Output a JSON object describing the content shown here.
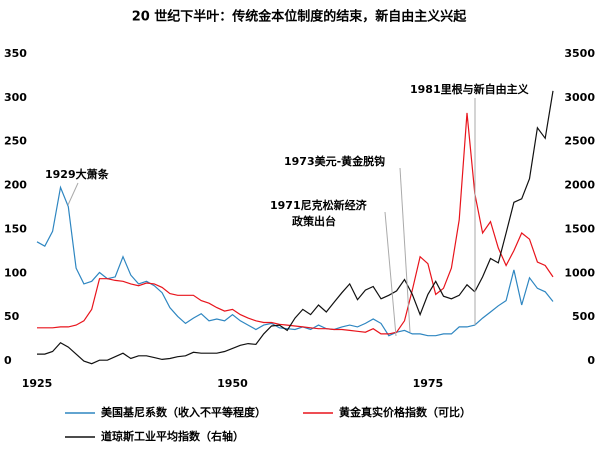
{
  "chart_data": {
    "type": "line",
    "title": "20 世纪下半叶：传统金本位制度的结束，新自由主义兴起",
    "x": [
      1925,
      1926,
      1927,
      1928,
      1929,
      1930,
      1931,
      1932,
      1933,
      1934,
      1935,
      1936,
      1937,
      1938,
      1939,
      1940,
      1941,
      1942,
      1943,
      1944,
      1945,
      1946,
      1947,
      1948,
      1949,
      1950,
      1951,
      1952,
      1953,
      1954,
      1955,
      1956,
      1957,
      1958,
      1959,
      1960,
      1961,
      1962,
      1963,
      1964,
      1965,
      1966,
      1967,
      1968,
      1969,
      1970,
      1971,
      1972,
      1973,
      1974,
      1975,
      1976,
      1977,
      1978,
      1979,
      1980,
      1981,
      1982,
      1983,
      1984,
      1985,
      1986,
      1987,
      1988,
      1989,
      1990,
      1991
    ],
    "xlim": [
      1925,
      1991
    ],
    "xticks": [
      1925,
      1950,
      1975
    ],
    "ylim": [
      0,
      350
    ],
    "yticks": [
      0,
      50,
      100,
      150,
      200,
      250,
      300,
      350
    ],
    "y2lim": [
      0,
      3500
    ],
    "y2ticks": [
      0,
      500,
      1000,
      1500,
      2000,
      2500,
      3000,
      3500
    ],
    "grid": false,
    "legend": "bottom",
    "series": [
      {
        "name": "美国基尼系数（收入不平等程度）",
        "color": "#2e86c1",
        "values": [
          145,
          140,
          157,
          207,
          185,
          115,
          97,
          100,
          110,
          103,
          105,
          128,
          107,
          97,
          100,
          95,
          87,
          70,
          60,
          52,
          58,
          63,
          55,
          57,
          55,
          62,
          55,
          50,
          45,
          50,
          52,
          47,
          46,
          45,
          48,
          45,
          50,
          46,
          45,
          48,
          50,
          48,
          52,
          57,
          52,
          38,
          42,
          44,
          40,
          40,
          38,
          38,
          40,
          40,
          48,
          48,
          50,
          58,
          65,
          72,
          78,
          113,
          73,
          104,
          92,
          88,
          77
        ]
      },
      {
        "name": "黄金真实价格指数（可比）",
        "color": "#e8141c",
        "values": [
          47,
          47,
          47,
          48,
          48,
          50,
          55,
          68,
          103,
          103,
          101,
          100,
          97,
          95,
          98,
          97,
          93,
          86,
          84,
          84,
          84,
          78,
          75,
          70,
          66,
          68,
          62,
          58,
          55,
          53,
          53,
          51,
          50,
          49,
          48,
          47,
          46,
          46,
          45,
          45,
          44,
          43,
          42,
          46,
          40,
          40,
          42,
          55,
          90,
          128,
          120,
          85,
          92,
          115,
          170,
          292,
          200,
          155,
          168,
          138,
          118,
          135,
          155,
          148,
          122,
          118,
          105
        ]
      },
      {
        "name": "道琼斯工业平均指数（右轴）",
        "color": "#111111",
        "axis": "y2",
        "values": [
          170,
          170,
          200,
          300,
          250,
          170,
          90,
          60,
          100,
          100,
          140,
          180,
          120,
          150,
          150,
          130,
          110,
          120,
          140,
          150,
          190,
          180,
          180,
          180,
          200,
          235,
          270,
          290,
          280,
          400,
          490,
          500,
          440,
          580,
          680,
          620,
          730,
          650,
          760,
          870,
          970,
          790,
          900,
          940,
          800,
          840,
          890,
          1020,
          850,
          620,
          850,
          1000,
          830,
          800,
          840,
          960,
          880,
          1050,
          1260,
          1210,
          1550,
          1900,
          1940,
          2170,
          2750,
          2630,
          3170
        ]
      }
    ],
    "annotations": [
      "1929大萧条",
      "1971尼克松新经济",
      "政策出台",
      "1973美元-黄金脱钩",
      "1981里根与新自由主义"
    ]
  }
}
